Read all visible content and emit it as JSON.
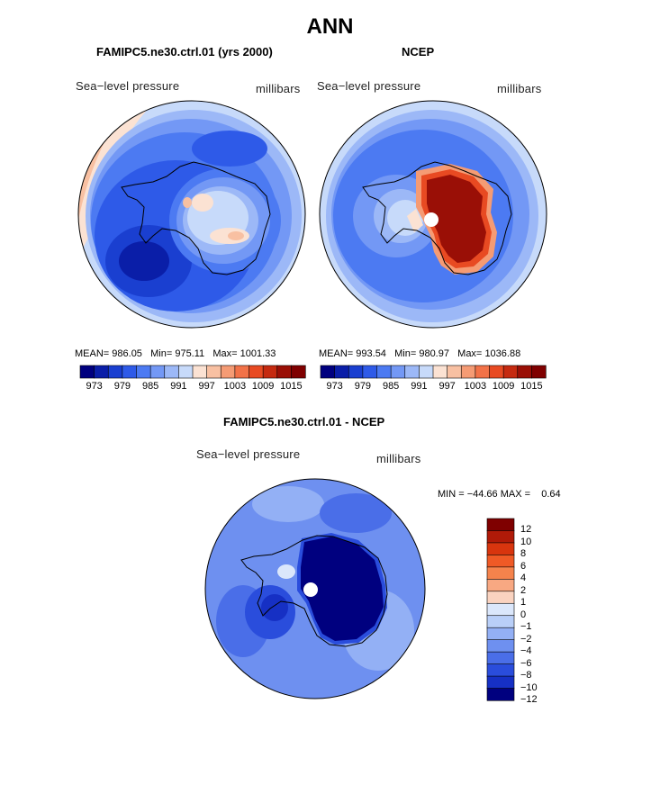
{
  "main_title": "ANN",
  "panels": [
    {
      "title": "FAMIPC5.ne30.ctrl.01 (yrs 2000)",
      "field_label": "Sea−level pressure",
      "units": "millibars",
      "stats": {
        "mean_label": "MEAN=",
        "mean": "986.05",
        "min_label": "Min=",
        "min": "975.11",
        "max_label": "Max=",
        "max": "1001.33"
      }
    },
    {
      "title": "NCEP",
      "field_label": "Sea−level pressure",
      "units": "millibars",
      "stats": {
        "mean_label": "MEAN=",
        "mean": "993.54",
        "min_label": "Min=",
        "min": "980.97",
        "max_label": "Max=",
        "max": "1036.88"
      }
    }
  ],
  "diff_panel": {
    "title": "FAMIPC5.ne30.ctrl.01 - NCEP",
    "field_label": "Sea−level pressure",
    "units": "millibars",
    "minmax_text": "MIN = −44.66 MAX =    0.64"
  },
  "colorbar_abs": {
    "colors": [
      "#00007f",
      "#0a1ea8",
      "#1a3fd0",
      "#2e5ae8",
      "#4c7af2",
      "#7398f5",
      "#9cb8f7",
      "#c7dafa",
      "#fbe2d3",
      "#f8c0a2",
      "#f59b74",
      "#f27248",
      "#e84a22",
      "#c52a10",
      "#9a0f06",
      "#7f0000"
    ],
    "tick_labels": [
      "973",
      "979",
      "985",
      "991",
      "997",
      "1003",
      "1009",
      "1015"
    ]
  },
  "colorbar_diff": {
    "colors": [
      "#7f0000",
      "#b01a08",
      "#d8350e",
      "#ef5a26",
      "#f5834c",
      "#f8a882",
      "#fad3c0",
      "#dbe7fb",
      "#b9cff8",
      "#93b0f5",
      "#6e90f0",
      "#4a6ee8",
      "#2a4ddc",
      "#1630c4",
      "#00007f"
    ],
    "tick_labels": [
      "12",
      "10",
      "8",
      "6",
      "4",
      "2",
      "1",
      "0",
      "−1",
      "−2",
      "−4",
      "−6",
      "−8",
      "−10",
      "−12"
    ]
  },
  "chart_data": [
    {
      "type": "heatmap",
      "title": "FAMIPC5.ne30.ctrl.01 (yrs 2000)",
      "field": "Sea−level pressure",
      "units": "millibars",
      "projection": "south polar stereographic",
      "contour_levels": [
        973,
        976,
        979,
        982,
        985,
        988,
        991,
        994,
        997,
        1000,
        1003,
        1006,
        1009,
        1012,
        1015
      ],
      "stats": {
        "mean": 986.05,
        "min": 975.11,
        "max": 1001.33
      }
    },
    {
      "type": "heatmap",
      "title": "NCEP",
      "field": "Sea−level pressure",
      "units": "millibars",
      "projection": "south polar stereographic",
      "contour_levels": [
        973,
        976,
        979,
        982,
        985,
        988,
        991,
        994,
        997,
        1000,
        1003,
        1006,
        1009,
        1012,
        1015
      ],
      "stats": {
        "mean": 993.54,
        "min": 980.97,
        "max": 1036.88
      }
    },
    {
      "type": "heatmap",
      "title": "FAMIPC5.ne30.ctrl.01 - NCEP",
      "field": "Sea−level pressure",
      "units": "millibars",
      "projection": "south polar stereographic",
      "contour_levels": [
        -12,
        -10,
        -8,
        -6,
        -4,
        -2,
        -1,
        0,
        1,
        2,
        4,
        6,
        8,
        10,
        12
      ],
      "stats": {
        "min": -44.66,
        "max": 0.64
      }
    }
  ]
}
